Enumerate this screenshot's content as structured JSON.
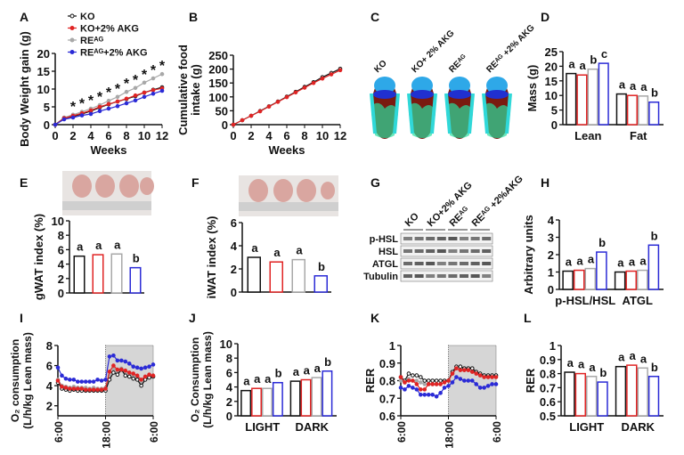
{
  "groups": [
    "KO",
    "KO+2% AKG",
    "REᴬᴳ",
    "REᴬᴳ+2% AKG"
  ],
  "colors": {
    "KO": "#111111",
    "KO+2% AKG": "#e02424",
    "REᴬᴳ": "#a8a8a8",
    "REᴬᴳ+2% AKG": "#2b2bd6"
  },
  "panel_letters": [
    "A",
    "B",
    "C",
    "D",
    "E",
    "F",
    "G",
    "H",
    "I",
    "J",
    "K",
    "L"
  ],
  "mouse_scans": {
    "labels": [
      "KO",
      "KO+ 2% AKG",
      "REᴬᴳ",
      "REᴬᴳ +2% AKG"
    ]
  },
  "western_blot": {
    "lane_labels": [
      "KO",
      "KO+2% AKG",
      "REᴬᴳ",
      "REᴬᴳ +2%AKG"
    ],
    "rows": [
      "p-HSL",
      "HSL",
      "ATGL",
      "Tubulin"
    ]
  },
  "chart_data": [
    {
      "id": "A",
      "type": "line",
      "xlabel": "Weeks",
      "ylabel": "Body Weight gain (g)",
      "xlim": [
        0,
        12
      ],
      "ylim": [
        0,
        20
      ],
      "xticks": [
        0,
        2,
        4,
        6,
        8,
        10,
        12
      ],
      "yticks": [
        0,
        5,
        10,
        15,
        20
      ],
      "legend": "top-left",
      "x": [
        0,
        1,
        2,
        3,
        4,
        5,
        6,
        7,
        8,
        9,
        10,
        11,
        12
      ],
      "series": [
        {
          "name": "KO",
          "values": [
            0,
            1.8,
            2.3,
            3,
            3.8,
            4.8,
            5.7,
            6.5,
            7.2,
            8,
            9,
            9.8,
            10.5
          ]
        },
        {
          "name": "KO+2% AKG",
          "values": [
            0,
            1.8,
            2.5,
            3.2,
            4,
            5,
            5.8,
            6.5,
            7.3,
            8.2,
            9,
            9.7,
            10.2
          ]
        },
        {
          "name": "REᴬᴳ",
          "values": [
            0,
            2,
            2.8,
            3.6,
            4.5,
            5.5,
            6.7,
            7.8,
            9.2,
            10.3,
            11.8,
            13,
            14.2
          ]
        },
        {
          "name": "REᴬᴳ+2% AKG",
          "values": [
            0,
            1.5,
            2,
            2.6,
            3,
            3.8,
            4.5,
            5.2,
            6,
            6.8,
            7.8,
            8.7,
            9.5
          ]
        }
      ],
      "annotations": {
        "symbol": "*",
        "weeks": [
          2,
          3,
          4,
          5,
          6,
          7,
          8,
          9,
          10,
          11,
          12
        ]
      }
    },
    {
      "id": "B",
      "type": "line",
      "xlabel": "Weeks",
      "ylabel": "Cumulative food intake (g)",
      "xlim": [
        0,
        12
      ],
      "ylim": [
        0,
        250
      ],
      "xticks": [
        0,
        2,
        4,
        6,
        8,
        10,
        12
      ],
      "yticks": [
        0,
        50,
        100,
        150,
        200,
        250
      ],
      "x": [
        0,
        1,
        2,
        3,
        4,
        5,
        6,
        7,
        8,
        9,
        10,
        11,
        12
      ],
      "series": [
        {
          "name": "KO",
          "values": [
            0,
            16,
            32,
            49,
            66,
            83,
            101,
            118,
            136,
            153,
            171,
            186,
            201
          ]
        },
        {
          "name": "KO+2% AKG",
          "values": [
            0,
            16,
            32,
            48,
            65,
            82,
            99,
            116,
            133,
            150,
            166,
            181,
            196
          ]
        }
      ]
    },
    {
      "id": "D",
      "type": "bar",
      "ylabel": "Mass (g)",
      "ylim": [
        0,
        25
      ],
      "yticks": [
        0,
        5,
        10,
        15,
        20,
        25
      ],
      "categories": [
        "Lean",
        "Fat"
      ],
      "values": [
        [
          17.5,
          17,
          19,
          21
        ],
        [
          10.5,
          10,
          9.8,
          7.7
        ]
      ],
      "letters": [
        [
          "a",
          "a",
          "b",
          "c"
        ],
        [
          "a",
          "a",
          "a",
          "b"
        ]
      ]
    },
    {
      "id": "E",
      "type": "bar",
      "ylabel": "gWAT index (%)",
      "ylim": [
        0,
        10
      ],
      "yticks": [
        0,
        2,
        4,
        6,
        8,
        10
      ],
      "categories": [
        ""
      ],
      "values": [
        [
          5.1,
          5.3,
          5.4,
          3.5
        ]
      ],
      "letters": [
        [
          "a",
          "a",
          "a",
          "b"
        ]
      ]
    },
    {
      "id": "F",
      "type": "bar",
      "ylabel": "iWAT index (%)",
      "ylim": [
        0,
        6
      ],
      "yticks": [
        0,
        2,
        4,
        6
      ],
      "categories": [
        ""
      ],
      "values": [
        [
          3.0,
          2.6,
          2.8,
          1.4
        ]
      ],
      "letters": [
        [
          "a",
          "a",
          "a",
          "b"
        ]
      ]
    },
    {
      "id": "H",
      "type": "bar",
      "ylabel": "Arbitrary units",
      "ylim": [
        0,
        4
      ],
      "yticks": [
        0,
        1,
        2,
        3,
        4
      ],
      "categories": [
        "p-HSL/HSL",
        "ATGL"
      ],
      "values": [
        [
          1.05,
          1.1,
          1.2,
          2.15
        ],
        [
          1.0,
          1.05,
          1.1,
          2.55
        ]
      ],
      "letters": [
        [
          "a",
          "a",
          "a",
          "b"
        ],
        [
          "a",
          "a",
          "a",
          "b"
        ]
      ]
    },
    {
      "id": "I",
      "type": "line",
      "ylabel": "O₂ consumption (L/h/kg Lean mass)",
      "ylim": [
        1,
        8
      ],
      "yticks": [
        2,
        4,
        6,
        8
      ],
      "xlim": [
        0,
        24
      ],
      "xtick_labels": [
        "6:00",
        "18:00",
        "6:00"
      ],
      "shaded_dark_period": [
        "18:00",
        "6:00"
      ],
      "x": [
        0,
        1,
        2,
        3,
        4,
        5,
        6,
        7,
        8,
        9,
        10,
        11,
        12,
        13,
        14,
        15,
        16,
        17,
        18,
        19,
        20,
        21,
        22,
        23,
        24
      ],
      "series": [
        {
          "name": "KO",
          "values": [
            4.3,
            3.7,
            3.6,
            3.5,
            3.6,
            3.5,
            3.5,
            3.5,
            3.5,
            3.5,
            3.5,
            3.5,
            3.5,
            4.6,
            5.3,
            5.1,
            5.6,
            5.0,
            4.9,
            4.7,
            4.6,
            4.0,
            4.6,
            4.8,
            4.9
          ]
        },
        {
          "name": "KO+2% AKG",
          "values": [
            4.5,
            3.9,
            3.8,
            3.7,
            3.7,
            3.7,
            3.7,
            3.6,
            3.6,
            3.6,
            3.6,
            3.6,
            3.7,
            5.4,
            6.0,
            5.6,
            5.6,
            5.5,
            5.3,
            5.2,
            5.0,
            4.6,
            4.9,
            5.1,
            5.0
          ]
        },
        {
          "name": "REᴬᴳ",
          "values": [
            4.6,
            4.0,
            3.9,
            3.8,
            3.9,
            3.8,
            3.8,
            3.8,
            3.7,
            3.8,
            3.7,
            3.7,
            3.8,
            5.0,
            5.7,
            5.4,
            5.7,
            5.3,
            5.2,
            5.0,
            4.8,
            4.4,
            4.8,
            5.0,
            4.9
          ]
        },
        {
          "name": "REᴬᴳ+2% AKG",
          "values": [
            5.8,
            5.0,
            4.7,
            4.6,
            4.6,
            4.4,
            4.4,
            4.4,
            4.4,
            4.4,
            4.6,
            4.5,
            4.6,
            6.9,
            7.0,
            6.5,
            6.5,
            6.4,
            6.2,
            5.9,
            5.8,
            5.7,
            5.8,
            5.9,
            6.1
          ]
        }
      ]
    },
    {
      "id": "J",
      "type": "bar",
      "ylabel": "O₂ Consumption (L/h/kg Lean mass)",
      "ylim": [
        0,
        10
      ],
      "yticks": [
        0,
        2,
        4,
        6,
        8,
        10
      ],
      "categories": [
        "LIGHT",
        "DARK"
      ],
      "values": [
        [
          3.5,
          3.8,
          3.8,
          4.6
        ],
        [
          4.8,
          5.0,
          5.3,
          6.2
        ]
      ],
      "letters": [
        [
          "a",
          "a",
          "a",
          "b"
        ],
        [
          "a",
          "a",
          "a",
          "b"
        ]
      ]
    },
    {
      "id": "K",
      "type": "line",
      "ylabel": "RER",
      "ylim": [
        0.6,
        1.0
      ],
      "yticks": [
        0.6,
        0.7,
        0.8,
        0.9,
        1.0
      ],
      "xlim": [
        0,
        24
      ],
      "xtick_labels": [
        "6:00",
        "18:00",
        "6:00"
      ],
      "shaded_dark_period": [
        "18:00",
        "6:00"
      ],
      "x": [
        0,
        1,
        2,
        3,
        4,
        5,
        6,
        7,
        8,
        9,
        10,
        11,
        12,
        13,
        14,
        15,
        16,
        17,
        18,
        19,
        20,
        21,
        22,
        23,
        24
      ],
      "series": [
        {
          "name": "KO",
          "values": [
            0.82,
            0.8,
            0.84,
            0.83,
            0.83,
            0.82,
            0.8,
            0.8,
            0.8,
            0.8,
            0.8,
            0.8,
            0.8,
            0.85,
            0.88,
            0.88,
            0.87,
            0.87,
            0.87,
            0.85,
            0.84,
            0.83,
            0.83,
            0.83,
            0.83
          ]
        },
        {
          "name": "KO+2% AKG",
          "values": [
            0.82,
            0.79,
            0.8,
            0.8,
            0.78,
            0.75,
            0.75,
            0.78,
            0.78,
            0.78,
            0.78,
            0.79,
            0.8,
            0.84,
            0.87,
            0.86,
            0.86,
            0.86,
            0.85,
            0.84,
            0.83,
            0.82,
            0.82,
            0.82,
            0.82
          ]
        },
        {
          "name": "REᴬᴳ",
          "values": [
            0.8,
            0.79,
            0.81,
            0.8,
            0.8,
            0.79,
            0.78,
            0.78,
            0.78,
            0.78,
            0.78,
            0.79,
            0.8,
            0.84,
            0.87,
            0.86,
            0.86,
            0.86,
            0.85,
            0.84,
            0.83,
            0.83,
            0.82,
            0.83,
            0.83
          ]
        },
        {
          "name": "REᴬᴳ+2% AKG",
          "values": [
            0.76,
            0.75,
            0.77,
            0.76,
            0.75,
            0.72,
            0.72,
            0.72,
            0.72,
            0.71,
            0.73,
            0.76,
            0.77,
            0.79,
            0.82,
            0.81,
            0.8,
            0.8,
            0.8,
            0.78,
            0.76,
            0.76,
            0.77,
            0.78,
            0.78
          ]
        }
      ]
    },
    {
      "id": "L",
      "type": "bar",
      "ylabel": "RER",
      "ylim": [
        0.5,
        1.0
      ],
      "yticks": [
        0.5,
        0.6,
        0.7,
        0.8,
        0.9,
        1.0
      ],
      "categories": [
        "LIGHT",
        "DARK"
      ],
      "values": [
        [
          0.81,
          0.8,
          0.78,
          0.74
        ],
        [
          0.85,
          0.86,
          0.84,
          0.78
        ]
      ],
      "letters": [
        [
          "a",
          "a",
          "a",
          "b"
        ],
        [
          "a",
          "a",
          "a",
          "b"
        ]
      ]
    }
  ]
}
